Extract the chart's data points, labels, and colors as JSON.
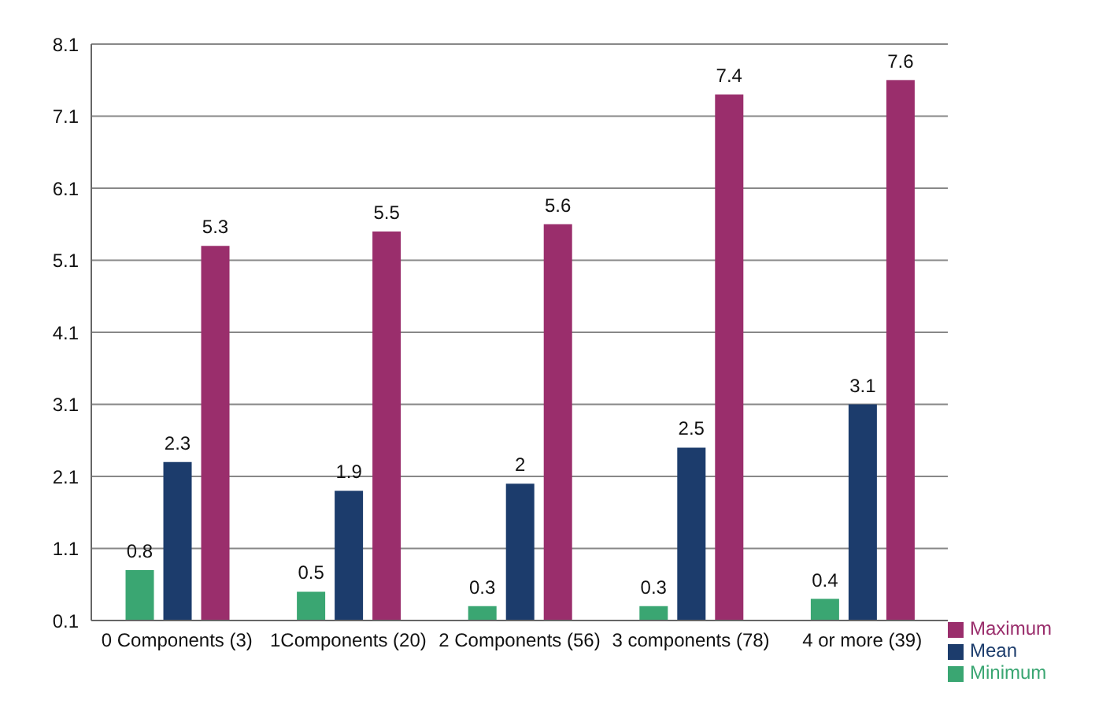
{
  "chart_data": {
    "type": "bar",
    "categories": [
      "0 Components (3)",
      "1Components (20)",
      "2 Components (56)",
      "3 components (78)",
      "4 or more (39)"
    ],
    "series": [
      {
        "name": "Minimum",
        "color": "#3aa672",
        "values": [
          0.8,
          0.5,
          0.3,
          0.3,
          0.4
        ]
      },
      {
        "name": "Mean",
        "color": "#1c3c6c",
        "values": [
          2.3,
          1.9,
          2,
          2.5,
          3.1
        ]
      },
      {
        "name": "Maximum",
        "color": "#9a2e6c",
        "values": [
          5.3,
          5.5,
          5.6,
          7.4,
          7.6
        ]
      }
    ],
    "ylim": [
      0.1,
      8.1
    ],
    "yticks": [
      0.1,
      1.1,
      2.1,
      3.1,
      4.1,
      5.1,
      6.1,
      7.1,
      8.1
    ],
    "grid": "y",
    "legend": "bottom right",
    "data_labels": true
  }
}
